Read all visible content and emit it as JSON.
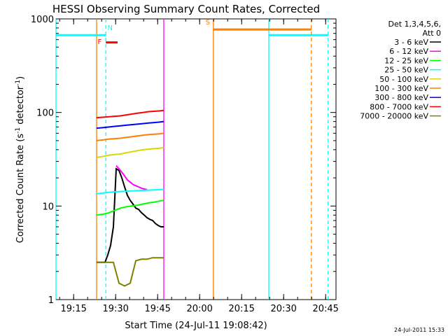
{
  "chart_data": {
    "type": "line",
    "title": "HESSI Observing Summary Count Rates, Corrected",
    "xlabel": "Start Time (24-Jul-11 19:08:42)",
    "ylabel_main": "Corrected Count Rate (s",
    "ylabel_sup1": "-1",
    "ylabel_mid": " detector",
    "ylabel_sup2": "-1",
    "ylabel_end": ")",
    "yscale": "log",
    "ylim": [
      1,
      1000
    ],
    "xlim_minutes": [
      0,
      100
    ],
    "x_ticks": [
      {
        "label": "19:15",
        "m": 6.3
      },
      {
        "label": "19:30",
        "m": 21.3
      },
      {
        "label": "19:45",
        "m": 36.3
      },
      {
        "label": "20:00",
        "m": 51.3
      },
      {
        "label": "20:15",
        "m": 66.3
      },
      {
        "label": "20:30",
        "m": 81.3
      },
      {
        "label": "20:45",
        "m": 96.3
      }
    ],
    "y_ticks": [
      {
        "label": "1",
        "v": 1
      },
      {
        "label": "10",
        "v": 10
      },
      {
        "label": "100",
        "v": 100
      },
      {
        "label": "1000",
        "v": 1000
      }
    ],
    "legend_header_1": "Det 1,3,4,5,6,",
    "legend_header_2": "Att 0",
    "legend_position": "top-right, outside plot",
    "series": [
      {
        "name": "3 - 6 keV",
        "color": "#000000",
        "segments": [
          {
            "x": [
              14.5,
              16.5,
              17.5,
              18.5,
              19.5,
              20.5,
              21.5,
              22.5,
              23.5,
              24.5,
              25.5,
              26.5,
              27.5,
              28.5,
              29.5,
              30.5,
              31.5,
              32.5,
              33.5,
              34.5,
              35.5,
              36.5,
              37.5,
              38.5
            ],
            "y": [
              2.5,
              2.5,
              2.5,
              3.0,
              3.8,
              6.0,
              25,
              24,
              20,
              16,
              13,
              11.5,
              10.5,
              9.5,
              9.2,
              8.5,
              8.0,
              7.5,
              7.2,
              7.0,
              6.5,
              6.2,
              6.0,
              6.0
            ]
          }
        ]
      },
      {
        "name": "6 - 12 keV",
        "color": "#ff00ff",
        "segments": [
          {
            "x": [
              21.5,
              22.5,
              23.5,
              24.5,
              25.5,
              26.5,
              27.5,
              28.5,
              29.5,
              30.5,
              31.5,
              32.5
            ],
            "y": [
              27,
              25,
              23,
              21,
              19,
              18,
              17,
              16.5,
              16,
              15.5,
              15.2,
              15
            ]
          }
        ]
      },
      {
        "name": "12 - 25 keV",
        "color": "#00ff00",
        "segments": [
          {
            "x": [
              14.5,
              17,
              19,
              21,
              23,
              25,
              27,
              29,
              31,
              33,
              35,
              37,
              38.5
            ],
            "y": [
              8,
              8.2,
              8.5,
              9,
              9.5,
              9.8,
              10,
              10.2,
              10.5,
              10.8,
              11,
              11.3,
              11.5
            ]
          }
        ]
      },
      {
        "name": "25 - 50 keV",
        "color": "#00ffff",
        "segments": [
          {
            "x": [
              14.5,
              17,
              19,
              21,
              23,
              25,
              27,
              29,
              31,
              33,
              35,
              37,
              38.5
            ],
            "y": [
              13.5,
              13.8,
              14,
              14.2,
              14.3,
              14.4,
              14.5,
              14.6,
              14.7,
              14.8,
              14.9,
              15,
              15
            ]
          }
        ]
      },
      {
        "name": "50 - 100 keV",
        "color": "#d8d800",
        "segments": [
          {
            "x": [
              14.5,
              17,
              19,
              21,
              23,
              25,
              27,
              29,
              31,
              33,
              35,
              37,
              38.5
            ],
            "y": [
              33,
              34,
              35,
              35.5,
              36,
              37,
              38,
              39,
              40,
              40.5,
              41,
              41.5,
              42
            ]
          }
        ]
      },
      {
        "name": "100 - 300 keV",
        "color": "#ff7f00",
        "segments": [
          {
            "x": [
              14.5,
              17,
              19,
              21,
              23,
              25,
              27,
              29,
              31,
              33,
              35,
              37,
              38.5
            ],
            "y": [
              50,
              51,
              52,
              52.5,
              53,
              54,
              55,
              56,
              57,
              58,
              58.5,
              59,
              60
            ]
          }
        ]
      },
      {
        "name": "300 - 800 keV",
        "color": "#0000ff",
        "segments": [
          {
            "x": [
              14.5,
              17,
              19,
              21,
              23,
              25,
              27,
              29,
              31,
              33,
              35,
              37,
              38.5
            ],
            "y": [
              68,
              69,
              70,
              71,
              72,
              73,
              74,
              75,
              76,
              77,
              78,
              79,
              80
            ]
          }
        ]
      },
      {
        "name": "800 - 7000 keV",
        "color": "#ff0000",
        "segments": [
          {
            "x": [
              14.5,
              17,
              19,
              21,
              23,
              25,
              27,
              29,
              31,
              33,
              35,
              37,
              38.5
            ],
            "y": [
              88,
              89,
              90,
              91,
              92,
              94,
              96,
              98,
              100,
              102,
              103,
              104,
              105
            ]
          }
        ]
      },
      {
        "name": "7000 - 20000 keV",
        "color": "#808000",
        "segments": [
          {
            "x": [
              14.5,
              16.5,
              18.5,
              20.5,
              22.5,
              24.5,
              26.5,
              28.5,
              30.5,
              32.5,
              34.5,
              36.5,
              38.5
            ],
            "y": [
              2.5,
              2.5,
              2.5,
              2.5,
              1.5,
              1.4,
              1.5,
              2.6,
              2.7,
              2.7,
              2.8,
              2.8,
              2.8
            ]
          }
        ]
      }
    ],
    "vertical_markers": [
      {
        "m": 0.0,
        "color": "#00ffff",
        "style": "solid"
      },
      {
        "m": 14.5,
        "color": "#ff7f00",
        "style": "solid"
      },
      {
        "m": 17.8,
        "color": "#00ffff",
        "style": "dashed"
      },
      {
        "m": 38.5,
        "color": "#ff00ff",
        "style": "solid"
      },
      {
        "m": 56.2,
        "color": "#ff7f00",
        "style": "solid"
      },
      {
        "m": 76.0,
        "color": "#00ffff",
        "style": "solid"
      },
      {
        "m": 91.2,
        "color": "#ff7f00",
        "style": "dashed"
      },
      {
        "m": 97.2,
        "color": "#00ffff",
        "style": "dashed"
      }
    ],
    "horizontal_bars": [
      {
        "x1": 0.0,
        "x2": 17.8,
        "y": 670,
        "color": "#00ffff"
      },
      {
        "x1": 76.0,
        "x2": 97.2,
        "y": 670,
        "color": "#00ffff"
      },
      {
        "x1": 56.2,
        "x2": 91.2,
        "y": 770,
        "color": "#ff7f00"
      },
      {
        "x1": 17.8,
        "x2": 22.0,
        "y": 560,
        "color": "#ff0000"
      }
    ],
    "flag_labels": [
      {
        "text": "F",
        "m": 15.6,
        "v": 540,
        "color": "#ff0000"
      },
      {
        "text": "N",
        "m": 19.3,
        "v": 760,
        "color": "#00ffff"
      },
      {
        "text": "S",
        "m": 54.2,
        "v": 870,
        "color": "#ff7f00"
      }
    ],
    "footer_date": "24-Jul-2011 15:33"
  }
}
